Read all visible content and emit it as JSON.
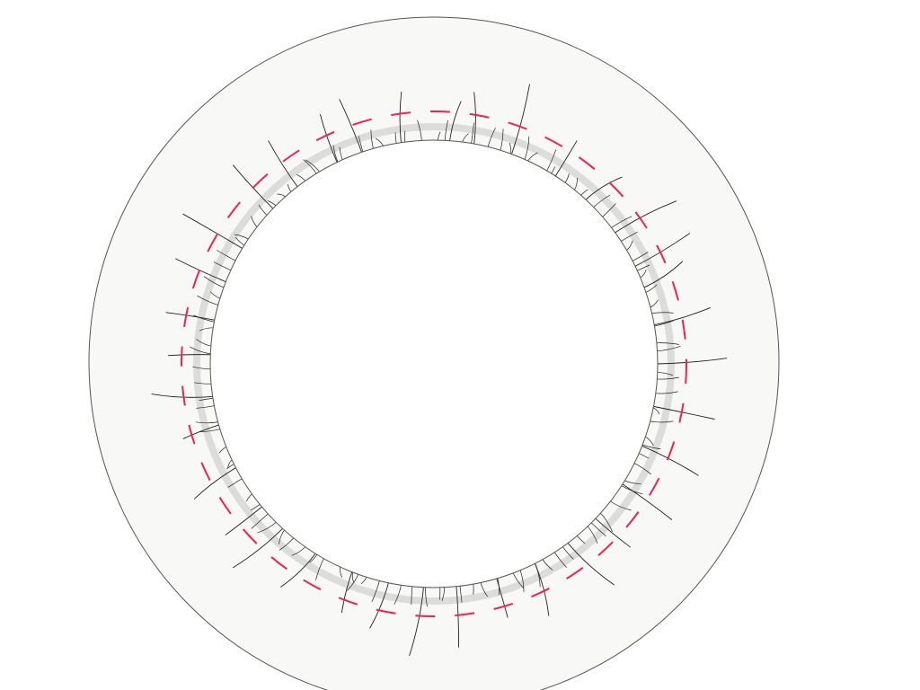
{
  "colors": {
    "background": "#ffffff",
    "disc_fill": "#f8f8f7",
    "disc_stroke": "#555555",
    "band": "#dcdcdb",
    "dashed_ring": "#ee2255",
    "hair": "#222222",
    "inner_fill": "#ffffff"
  },
  "long_hair_count": 36,
  "short_hair_count": 110
}
